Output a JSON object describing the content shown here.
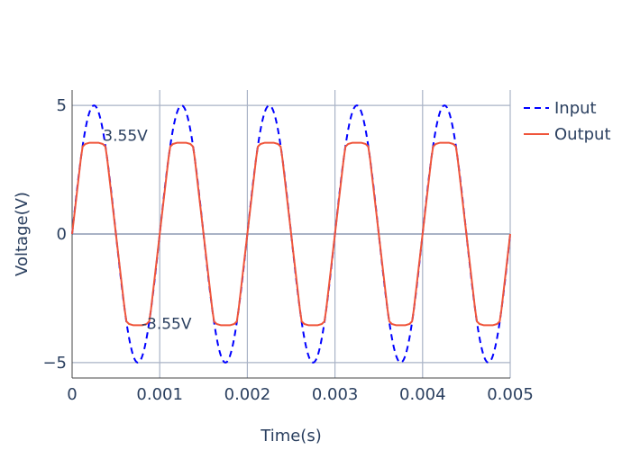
{
  "chart_data": {
    "type": "line",
    "xlabel": "Time(s)",
    "ylabel": "Voltage(V)",
    "xlim": [
      0,
      0.005
    ],
    "ylim": [
      -5.6,
      5.6
    ],
    "x_ticks": [
      0,
      0.001,
      0.002,
      0.003,
      0.004,
      0.005
    ],
    "x_tick_labels": [
      "0",
      "0.001",
      "0.002",
      "0.003",
      "0.004",
      "0.005"
    ],
    "y_ticks": [
      -5,
      0,
      5
    ],
    "y_tick_labels": [
      "−5",
      "0",
      "5"
    ],
    "grid": true,
    "legend_position": "top-right",
    "series": [
      {
        "name": "Input",
        "color": "#0000ff",
        "dash": "dash",
        "x": [
          0,
          0.0001,
          0.0002,
          0.00025,
          0.0003,
          0.0004,
          0.0005,
          0.0006,
          0.0007,
          0.00075,
          0.0008,
          0.0009,
          0.001,
          0.0011,
          0.0012,
          0.00125,
          0.0013,
          0.0014,
          0.0015,
          0.0016,
          0.0017,
          0.00175,
          0.0018,
          0.0019,
          0.002,
          0.0021,
          0.0022,
          0.00225,
          0.0023,
          0.0024,
          0.0025,
          0.0026,
          0.0027,
          0.00275,
          0.0028,
          0.0029,
          0.003,
          0.0031,
          0.0032,
          0.00325,
          0.0033,
          0.0034,
          0.0035,
          0.0036,
          0.0037,
          0.00375,
          0.0038,
          0.0039,
          0.004,
          0.0041,
          0.0042,
          0.00425,
          0.0043,
          0.0044,
          0.0045,
          0.0046,
          0.0047,
          0.00475,
          0.0048,
          0.0049,
          0.005
        ],
        "y": [
          0,
          2.94,
          4.76,
          5,
          4.76,
          2.94,
          0,
          -2.94,
          -4.76,
          -5,
          -4.76,
          -2.94,
          0,
          2.94,
          4.76,
          5,
          4.76,
          2.94,
          0,
          -2.94,
          -4.76,
          -5,
          -4.76,
          -2.94,
          0,
          2.94,
          4.76,
          5,
          4.76,
          2.94,
          0,
          -2.94,
          -4.76,
          -5,
          -4.76,
          -2.94,
          0,
          2.94,
          4.76,
          5,
          4.76,
          2.94,
          0,
          -2.94,
          -4.76,
          -5,
          -4.76,
          -2.94,
          0,
          2.94,
          4.76,
          5,
          4.76,
          2.94,
          0,
          -2.94,
          -4.76,
          -5,
          -4.76,
          -2.94,
          0
        ]
      },
      {
        "name": "Output",
        "color": "#ef553b",
        "dash": "solid",
        "x": [
          0,
          0.0001,
          0.00012,
          0.00015,
          0.0002,
          0.00025,
          0.0003,
          0.00035,
          0.00038,
          0.0004,
          0.0005,
          0.0006,
          0.00062,
          0.00065,
          0.0007,
          0.00075,
          0.0008,
          0.00085,
          0.00088,
          0.0009,
          0.001,
          0.0011,
          0.00112,
          0.00115,
          0.0012,
          0.00125,
          0.0013,
          0.00135,
          0.00138,
          0.0014,
          0.0015,
          0.0016,
          0.00162,
          0.00165,
          0.0017,
          0.00175,
          0.0018,
          0.00185,
          0.00188,
          0.0019,
          0.002,
          0.0021,
          0.00212,
          0.00215,
          0.0022,
          0.00225,
          0.0023,
          0.00235,
          0.00238,
          0.0024,
          0.0025,
          0.0026,
          0.00262,
          0.00265,
          0.0027,
          0.00275,
          0.0028,
          0.00285,
          0.00288,
          0.0029,
          0.003,
          0.0031,
          0.00312,
          0.00315,
          0.0032,
          0.00325,
          0.0033,
          0.00335,
          0.00338,
          0.0034,
          0.0035,
          0.0036,
          0.00362,
          0.00365,
          0.0037,
          0.00375,
          0.0038,
          0.00385,
          0.00388,
          0.0039,
          0.004,
          0.0041,
          0.00412,
          0.00415,
          0.0042,
          0.00425,
          0.0043,
          0.00435,
          0.00438,
          0.0044,
          0.0045,
          0.0046,
          0.00462,
          0.00465,
          0.0047,
          0.00475,
          0.0048,
          0.00485,
          0.00488,
          0.0049,
          0.005
        ],
        "y": [
          0,
          2.94,
          3.4,
          3.5,
          3.55,
          3.55,
          3.55,
          3.5,
          3.4,
          2.94,
          0,
          -2.94,
          -3.4,
          -3.5,
          -3.55,
          -3.55,
          -3.55,
          -3.5,
          -3.4,
          -2.94,
          0,
          2.94,
          3.4,
          3.5,
          3.55,
          3.55,
          3.55,
          3.5,
          3.4,
          2.94,
          0,
          -2.94,
          -3.4,
          -3.5,
          -3.55,
          -3.55,
          -3.55,
          -3.5,
          -3.4,
          -2.94,
          0,
          2.94,
          3.4,
          3.5,
          3.55,
          3.55,
          3.55,
          3.5,
          3.4,
          2.94,
          0,
          -2.94,
          -3.4,
          -3.5,
          -3.55,
          -3.55,
          -3.55,
          -3.5,
          -3.4,
          -2.94,
          0,
          2.94,
          3.4,
          3.5,
          3.55,
          3.55,
          3.55,
          3.5,
          3.4,
          2.94,
          0,
          -2.94,
          -3.4,
          -3.5,
          -3.55,
          -3.55,
          -3.55,
          -3.5,
          -3.4,
          -2.94,
          0,
          2.94,
          3.4,
          3.5,
          3.55,
          3.55,
          3.55,
          3.5,
          3.4,
          2.94,
          0,
          -2.94,
          -3.4,
          -3.5,
          -3.55,
          -3.55,
          -3.55,
          -3.5,
          -3.4,
          -2.94,
          0
        ]
      }
    ],
    "annotations": [
      {
        "text": "3.55V",
        "x": 0.00025,
        "y": 3.55
      },
      {
        "text": "-3.55V",
        "x": 0.00075,
        "y": -3.55
      }
    ]
  }
}
